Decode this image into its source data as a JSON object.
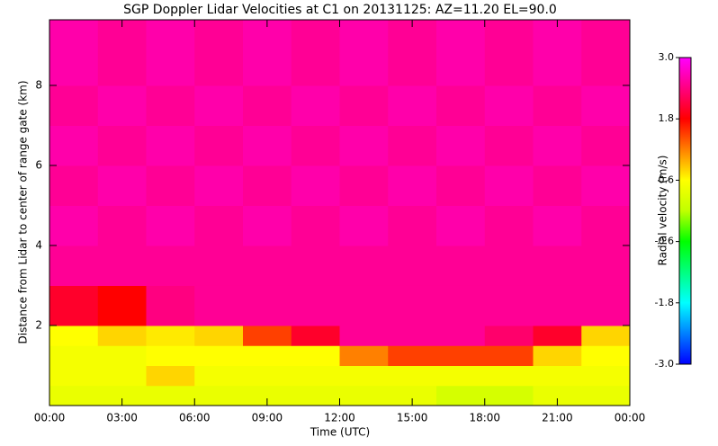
{
  "chart_data": {
    "type": "heatmap",
    "title": "SGP Doppler Lidar Velocities at C1 on 20131125: AZ=11.20 EL=90.0",
    "x_label": "Time (UTC)",
    "y_label": "Distance from Lidar to center of range gate (km)",
    "colorbar_label": "Radial velocity (m/s)",
    "xbins": [
      0,
      2,
      4,
      6,
      8,
      10,
      12,
      14,
      16,
      18,
      20,
      22,
      24
    ],
    "ybins": [
      0,
      0.5,
      1,
      1.5,
      2,
      3,
      4,
      5,
      6,
      7,
      8,
      9.64
    ],
    "z": [
      [
        0.4,
        0.4,
        0.4,
        0.4,
        0.4,
        0.4,
        0.4,
        0.4,
        0.2,
        0.2,
        0.4,
        0.4
      ],
      [
        0.5,
        0.5,
        0.8,
        0.5,
        0.5,
        0.5,
        0.5,
        0.5,
        0.5,
        0.5,
        0.5,
        0.5
      ],
      [
        0.5,
        0.5,
        0.6,
        0.6,
        0.6,
        0.6,
        1.2,
        1.5,
        1.5,
        1.5,
        0.8,
        0.6
      ],
      [
        0.6,
        0.8,
        0.7,
        0.8,
        1.5,
        2.0,
        2.5,
        2.5,
        2.5,
        2.3,
        2.0,
        0.8
      ],
      [
        2.0,
        1.8,
        2.4,
        2.5,
        2.5,
        2.5,
        2.5,
        2.5,
        2.5,
        2.5,
        2.5,
        2.5
      ],
      [
        2.5,
        2.5,
        2.5,
        2.5,
        2.5,
        2.5,
        2.5,
        2.5,
        2.5,
        2.5,
        2.5,
        2.5
      ],
      [
        2.6,
        2.5,
        2.6,
        2.5,
        2.6,
        2.5,
        2.6,
        2.5,
        2.6,
        2.5,
        2.6,
        2.5
      ],
      [
        2.5,
        2.6,
        2.5,
        2.6,
        2.5,
        2.6,
        2.5,
        2.6,
        2.5,
        2.6,
        2.5,
        2.6
      ],
      [
        2.6,
        2.5,
        2.6,
        2.5,
        2.6,
        2.5,
        2.6,
        2.5,
        2.6,
        2.5,
        2.6,
        2.5
      ],
      [
        2.5,
        2.6,
        2.5,
        2.6,
        2.5,
        2.6,
        2.5,
        2.6,
        2.5,
        2.6,
        2.5,
        2.6
      ],
      [
        2.6,
        2.5,
        2.6,
        2.5,
        2.6,
        2.5,
        2.6,
        2.5,
        2.6,
        2.5,
        2.6,
        2.5
      ]
    ],
    "xlim": [
      0,
      24
    ],
    "xticks": [
      {
        "value": 0,
        "label": "00:00"
      },
      {
        "value": 3,
        "label": "03:00"
      },
      {
        "value": 6,
        "label": "06:00"
      },
      {
        "value": 9,
        "label": "09:00"
      },
      {
        "value": 12,
        "label": "12:00"
      },
      {
        "value": 15,
        "label": "15:00"
      },
      {
        "value": 18,
        "label": "18:00"
      },
      {
        "value": 21,
        "label": "21:00"
      },
      {
        "value": 24,
        "label": "00:00"
      }
    ],
    "ylim": [
      0,
      9.64
    ],
    "yticks": [
      2,
      4,
      6,
      8
    ],
    "clim": [
      -3,
      3
    ],
    "cticks": [
      {
        "value": 3,
        "label": "3.0"
      },
      1.8,
      0.6,
      -0.6,
      -1.8,
      {
        "value": -3,
        "label": "-3.0"
      }
    ],
    "colorscale": [
      "#0000ff",
      "#0080ff",
      "#00ffff",
      "#00ff80",
      "#00ff00",
      "#c0ff00",
      "#ffff00",
      "#ff8000",
      "#ff0000",
      "#ff0080",
      "#ff00ff"
    ]
  }
}
